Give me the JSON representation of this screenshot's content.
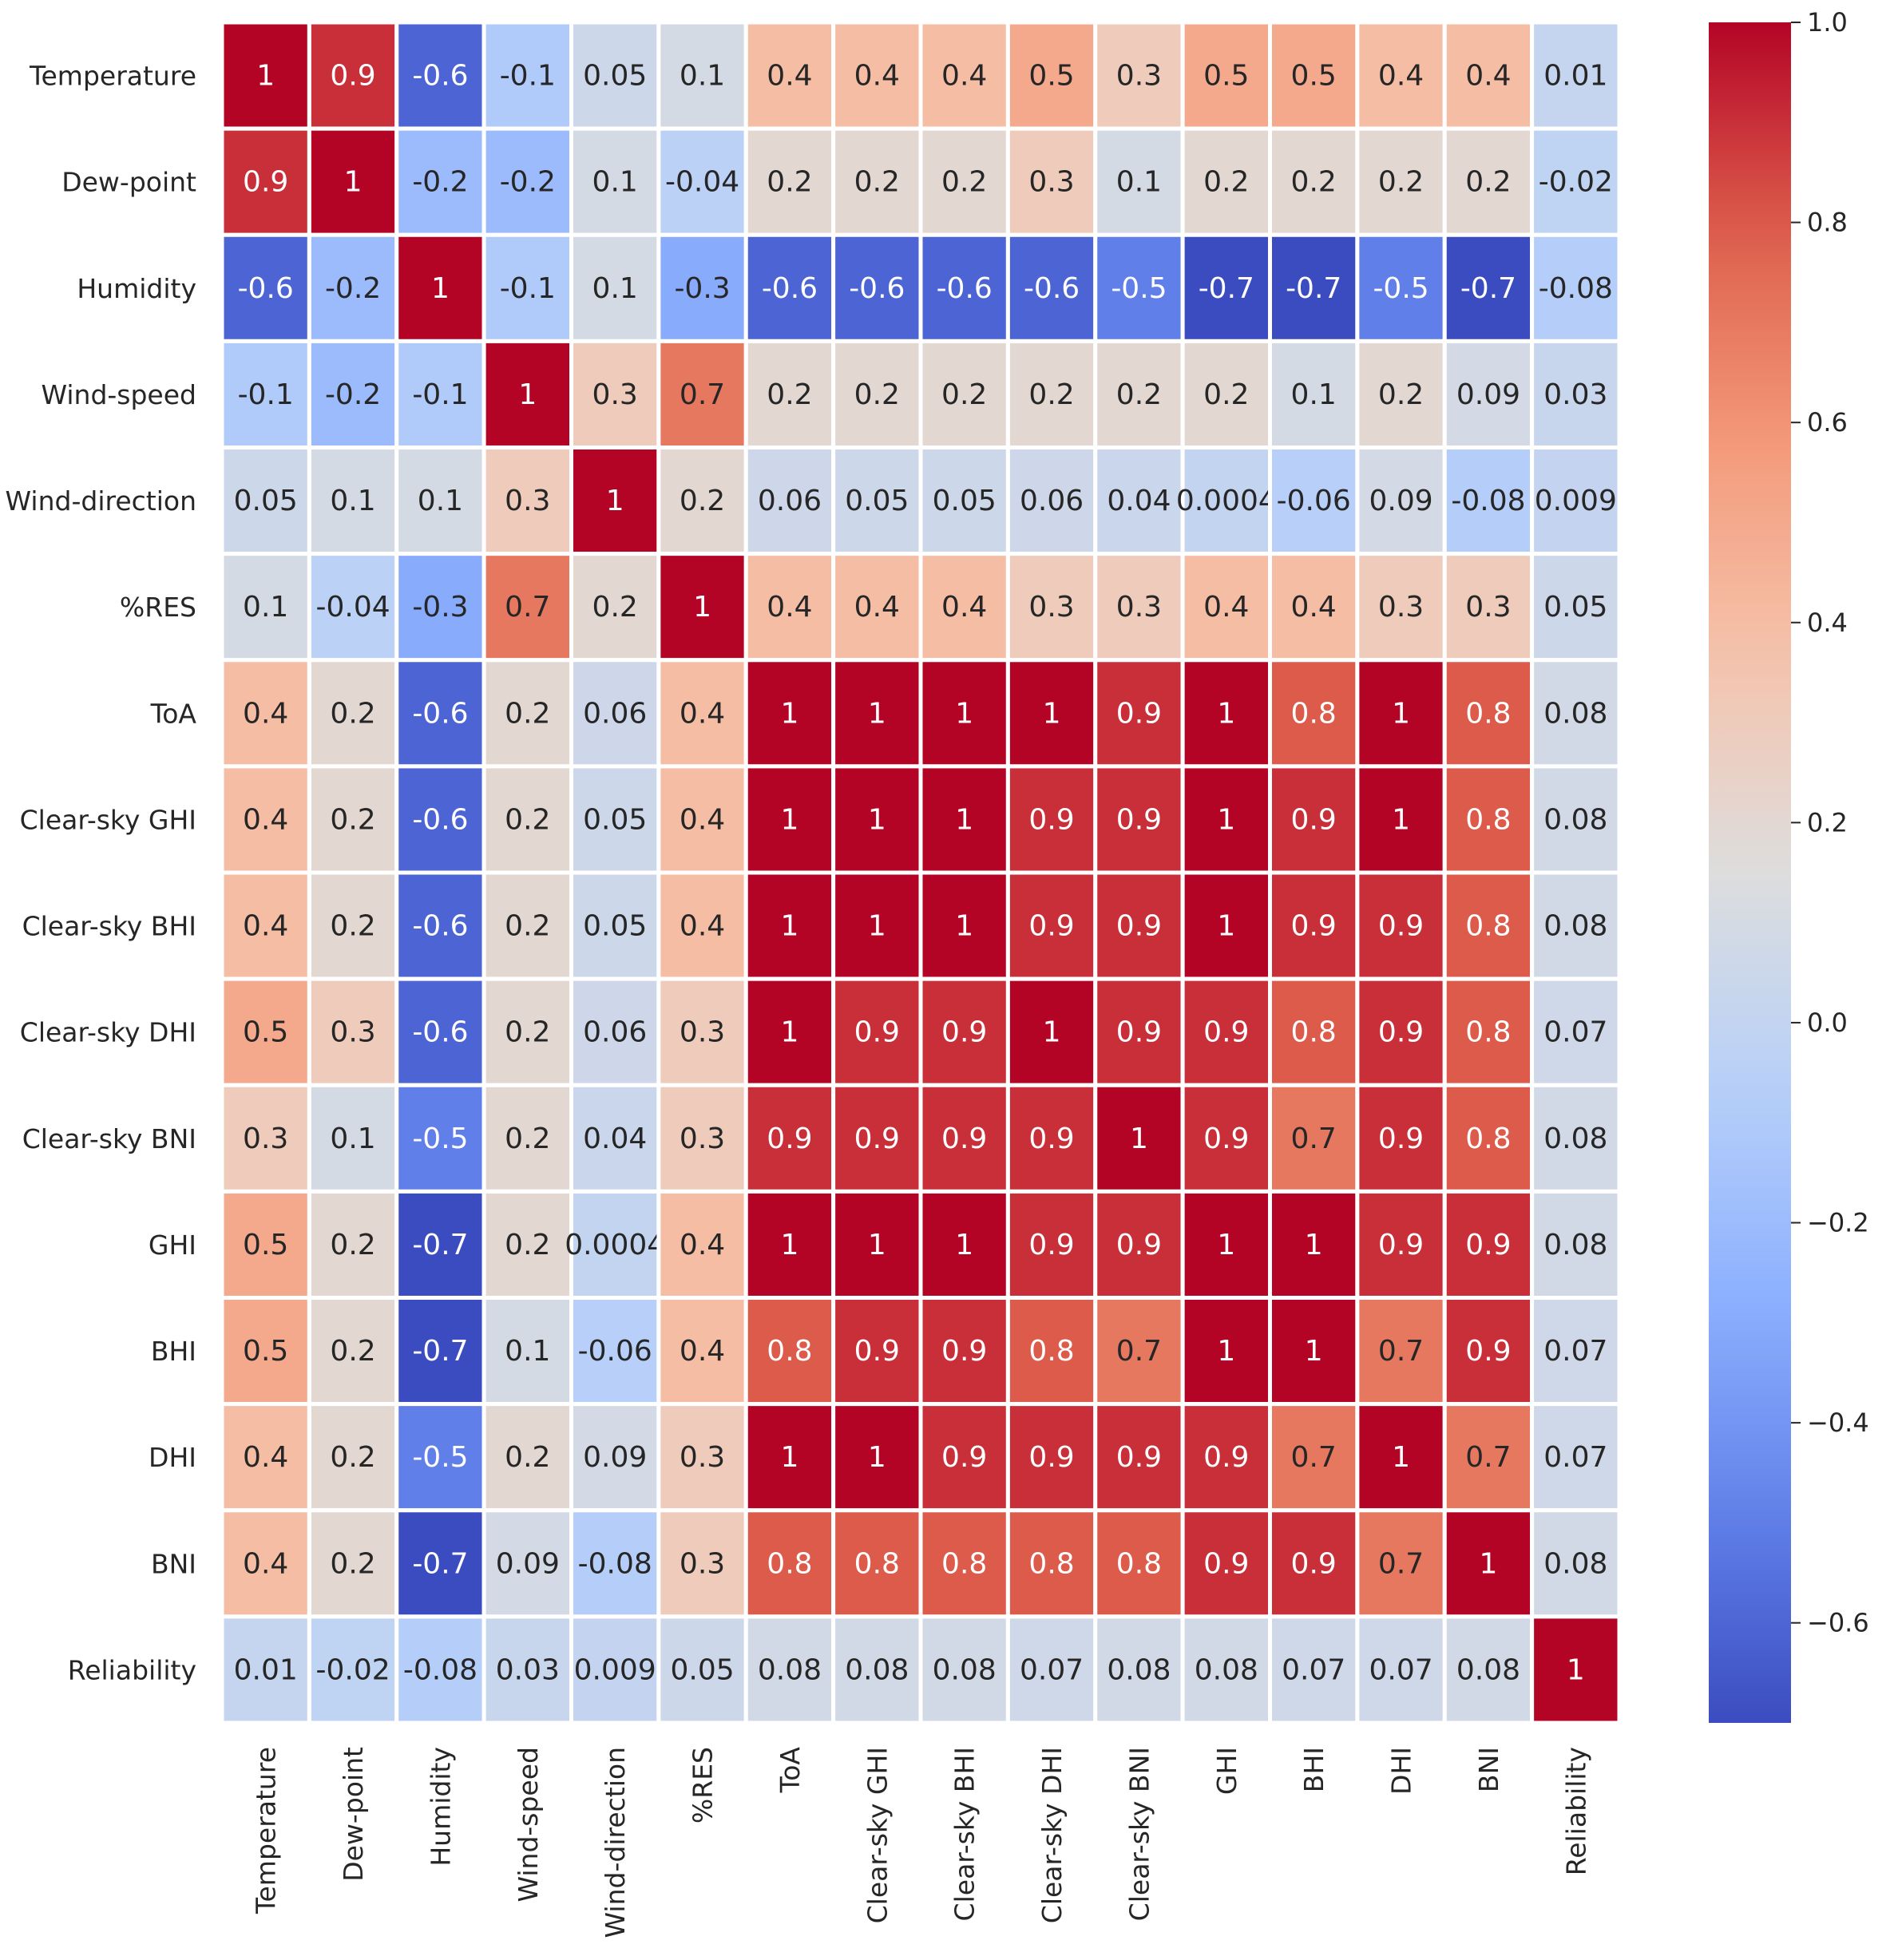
{
  "chart_data": {
    "type": "heatmap",
    "title": "",
    "xlabel": "",
    "ylabel": "",
    "colormap": "coolwarm",
    "vmin": -0.7,
    "vmax": 1.0,
    "colorbar_ticks": [
      1.0,
      0.8,
      0.6,
      0.4,
      0.2,
      0.0,
      -0.2,
      -0.4,
      -0.6
    ],
    "colorbar_tick_labels": [
      "1.0",
      "0.8",
      "0.6",
      "0.4",
      "0.2",
      "0.0",
      "−0.2",
      "−0.4",
      "−0.6"
    ],
    "variables": [
      "Temperature",
      "Dew-point",
      "Humidity",
      "Wind-speed",
      "Wind-direction",
      "%RES",
      "ToA",
      "Clear-sky GHI",
      "Clear-sky BHI",
      "Clear-sky DHI",
      "Clear-sky BNI",
      "GHI",
      "BHI",
      "DHI",
      "BNI",
      "Reliability"
    ],
    "values": [
      [
        1,
        0.9,
        -0.6,
        -0.1,
        0.05,
        0.1,
        0.4,
        0.4,
        0.4,
        0.5,
        0.3,
        0.5,
        0.5,
        0.4,
        0.4,
        0.01
      ],
      [
        0.9,
        1,
        -0.2,
        -0.2,
        0.1,
        -0.04,
        0.2,
        0.2,
        0.2,
        0.3,
        0.1,
        0.2,
        0.2,
        0.2,
        0.2,
        -0.02
      ],
      [
        -0.6,
        -0.2,
        1,
        -0.1,
        0.1,
        -0.3,
        -0.6,
        -0.6,
        -0.6,
        -0.6,
        -0.5,
        -0.7,
        -0.7,
        -0.5,
        -0.7,
        -0.08
      ],
      [
        -0.1,
        -0.2,
        -0.1,
        1,
        0.3,
        0.7,
        0.2,
        0.2,
        0.2,
        0.2,
        0.2,
        0.2,
        0.1,
        0.2,
        0.09,
        0.03
      ],
      [
        0.05,
        0.1,
        0.1,
        0.3,
        1,
        0.2,
        0.06,
        0.05,
        0.05,
        0.06,
        0.04,
        0.0004,
        -0.06,
        0.09,
        -0.08,
        0.009
      ],
      [
        0.1,
        -0.04,
        -0.3,
        0.7,
        0.2,
        1,
        0.4,
        0.4,
        0.4,
        0.3,
        0.3,
        0.4,
        0.4,
        0.3,
        0.3,
        0.05
      ],
      [
        0.4,
        0.2,
        -0.6,
        0.2,
        0.06,
        0.4,
        1,
        1,
        1,
        1,
        0.9,
        1,
        0.8,
        1,
        0.8,
        0.08
      ],
      [
        0.4,
        0.2,
        -0.6,
        0.2,
        0.05,
        0.4,
        1,
        1,
        1,
        0.9,
        0.9,
        1,
        0.9,
        1,
        0.8,
        0.08
      ],
      [
        0.4,
        0.2,
        -0.6,
        0.2,
        0.05,
        0.4,
        1,
        1,
        1,
        0.9,
        0.9,
        1,
        0.9,
        0.9,
        0.8,
        0.08
      ],
      [
        0.5,
        0.3,
        -0.6,
        0.2,
        0.06,
        0.3,
        1,
        0.9,
        0.9,
        1,
        0.9,
        0.9,
        0.8,
        0.9,
        0.8,
        0.07
      ],
      [
        0.3,
        0.1,
        -0.5,
        0.2,
        0.04,
        0.3,
        0.9,
        0.9,
        0.9,
        0.9,
        1,
        0.9,
        0.7,
        0.9,
        0.8,
        0.08
      ],
      [
        0.5,
        0.2,
        -0.7,
        0.2,
        0.0004,
        0.4,
        1,
        1,
        1,
        0.9,
        0.9,
        1,
        1,
        0.9,
        0.9,
        0.08
      ],
      [
        0.5,
        0.2,
        -0.7,
        0.1,
        -0.06,
        0.4,
        0.8,
        0.9,
        0.9,
        0.8,
        0.7,
        1,
        1,
        0.7,
        0.9,
        0.07
      ],
      [
        0.4,
        0.2,
        -0.5,
        0.2,
        0.09,
        0.3,
        1,
        1,
        0.9,
        0.9,
        0.9,
        0.9,
        0.7,
        1,
        0.7,
        0.07
      ],
      [
        0.4,
        0.2,
        -0.7,
        0.09,
        -0.08,
        0.3,
        0.8,
        0.8,
        0.8,
        0.8,
        0.8,
        0.9,
        0.9,
        0.7,
        1,
        0.08
      ],
      [
        0.01,
        -0.02,
        -0.08,
        0.03,
        0.009,
        0.05,
        0.08,
        0.08,
        0.08,
        0.07,
        0.08,
        0.08,
        0.07,
        0.07,
        0.08,
        1
      ]
    ],
    "labels": [
      [
        "1",
        "0.9",
        "-0.6",
        "-0.1",
        "0.05",
        "0.1",
        "0.4",
        "0.4",
        "0.4",
        "0.5",
        "0.3",
        "0.5",
        "0.5",
        "0.4",
        "0.4",
        "0.01"
      ],
      [
        "0.9",
        "1",
        "-0.2",
        "-0.2",
        "0.1",
        "-0.04",
        "0.2",
        "0.2",
        "0.2",
        "0.3",
        "0.1",
        "0.2",
        "0.2",
        "0.2",
        "0.2",
        "-0.02"
      ],
      [
        "-0.6",
        "-0.2",
        "1",
        "-0.1",
        "0.1",
        "-0.3",
        "-0.6",
        "-0.6",
        "-0.6",
        "-0.6",
        "-0.5",
        "-0.7",
        "-0.7",
        "-0.5",
        "-0.7",
        "-0.08"
      ],
      [
        "-0.1",
        "-0.2",
        "-0.1",
        "1",
        "0.3",
        "0.7",
        "0.2",
        "0.2",
        "0.2",
        "0.2",
        "0.2",
        "0.2",
        "0.1",
        "0.2",
        "0.09",
        "0.03"
      ],
      [
        "0.05",
        "0.1",
        "0.1",
        "0.3",
        "1",
        "0.2",
        "0.06",
        "0.05",
        "0.05",
        "0.06",
        "0.04",
        "0.0004",
        "-0.06",
        "0.09",
        "-0.08",
        "0.009"
      ],
      [
        "0.1",
        "-0.04",
        "-0.3",
        "0.7",
        "0.2",
        "1",
        "0.4",
        "0.4",
        "0.4",
        "0.3",
        "0.3",
        "0.4",
        "0.4",
        "0.3",
        "0.3",
        "0.05"
      ],
      [
        "0.4",
        "0.2",
        "-0.6",
        "0.2",
        "0.06",
        "0.4",
        "1",
        "1",
        "1",
        "1",
        "0.9",
        "1",
        "0.8",
        "1",
        "0.8",
        "0.08"
      ],
      [
        "0.4",
        "0.2",
        "-0.6",
        "0.2",
        "0.05",
        "0.4",
        "1",
        "1",
        "1",
        "0.9",
        "0.9",
        "1",
        "0.9",
        "1",
        "0.8",
        "0.08"
      ],
      [
        "0.4",
        "0.2",
        "-0.6",
        "0.2",
        "0.05",
        "0.4",
        "1",
        "1",
        "1",
        "0.9",
        "0.9",
        "1",
        "0.9",
        "0.9",
        "0.8",
        "0.08"
      ],
      [
        "0.5",
        "0.3",
        "-0.6",
        "0.2",
        "0.06",
        "0.3",
        "1",
        "0.9",
        "0.9",
        "1",
        "0.9",
        "0.9",
        "0.8",
        "0.9",
        "0.8",
        "0.07"
      ],
      [
        "0.3",
        "0.1",
        "-0.5",
        "0.2",
        "0.04",
        "0.3",
        "0.9",
        "0.9",
        "0.9",
        "0.9",
        "1",
        "0.9",
        "0.7",
        "0.9",
        "0.8",
        "0.08"
      ],
      [
        "0.5",
        "0.2",
        "-0.7",
        "0.2",
        "0.0004",
        "0.4",
        "1",
        "1",
        "1",
        "0.9",
        "0.9",
        "1",
        "1",
        "0.9",
        "0.9",
        "0.08"
      ],
      [
        "0.5",
        "0.2",
        "-0.7",
        "0.1",
        "-0.06",
        "0.4",
        "0.8",
        "0.9",
        "0.9",
        "0.8",
        "0.7",
        "1",
        "1",
        "0.7",
        "0.9",
        "0.07"
      ],
      [
        "0.4",
        "0.2",
        "-0.5",
        "0.2",
        "0.09",
        "0.3",
        "1",
        "1",
        "0.9",
        "0.9",
        "0.9",
        "0.9",
        "0.7",
        "1",
        "0.7",
        "0.07"
      ],
      [
        "0.4",
        "0.2",
        "-0.7",
        "0.09",
        "-0.08",
        "0.3",
        "0.8",
        "0.8",
        "0.8",
        "0.8",
        "0.8",
        "0.9",
        "0.9",
        "0.7",
        "1",
        "0.08"
      ],
      [
        "0.01",
        "-0.02",
        "-0.08",
        "0.03",
        "0.009",
        "0.05",
        "0.08",
        "0.08",
        "0.08",
        "0.07",
        "0.08",
        "0.08",
        "0.07",
        "0.07",
        "0.08",
        "1"
      ]
    ]
  }
}
